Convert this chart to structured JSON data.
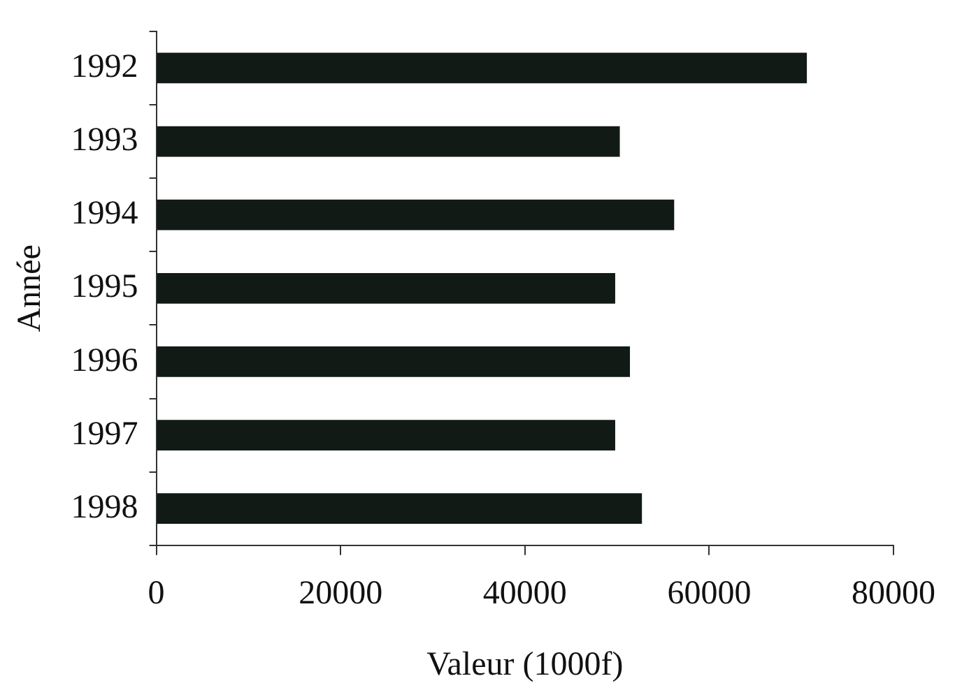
{
  "chart_data": {
    "type": "bar",
    "orientation": "horizontal",
    "xlabel": "Valeur (1000f)",
    "ylabel": "Année",
    "categories": [
      "1992",
      "1993",
      "1994",
      "1995",
      "1996",
      "1997",
      "1998"
    ],
    "values": [
      70600,
      50300,
      56200,
      49800,
      51400,
      49800,
      52700
    ],
    "color": "#111a15",
    "xlim": [
      0,
      80000
    ],
    "xticks": [
      0,
      20000,
      40000,
      60000,
      80000
    ],
    "grid": false
  }
}
